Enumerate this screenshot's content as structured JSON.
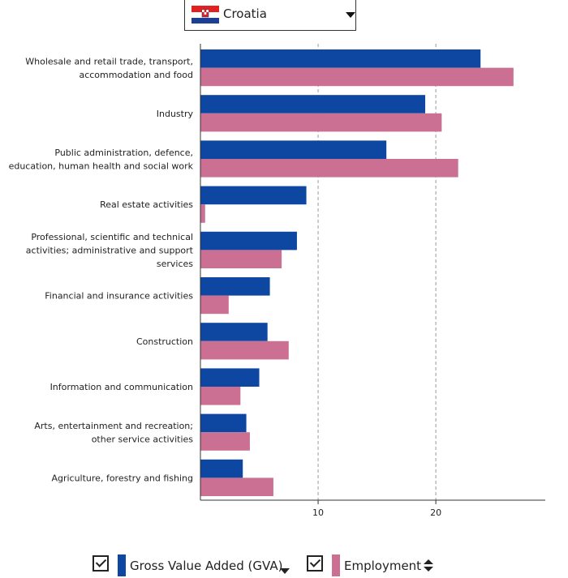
{
  "selector": {
    "country": "Croatia",
    "flag_icon": "croatia-flag-icon",
    "dropdown_icon": "caret-down-icon"
  },
  "chart_data": {
    "type": "bar",
    "orientation": "horizontal",
    "title": "",
    "xlabel": "",
    "ylabel": "",
    "categories": [
      "Wholesale and retail trade, transport, accommodation and food",
      "Industry",
      "Public administration, defence, education, human health and social work",
      "Real estate activities",
      "Professional, scientific and technical activities; administrative and support services",
      "Financial and insurance activities",
      "Construction",
      "Information and communication",
      "Arts, entertainment and recreation; other service activities",
      "Agriculture, forestry and fishing"
    ],
    "category_lines": [
      [
        "Wholesale and retail trade, transport,",
        "accommodation and food"
      ],
      [
        "Industry"
      ],
      [
        "Public administration, defence,",
        "education, human health and social work"
      ],
      [
        "Real estate activities"
      ],
      [
        "Professional, scientific and technical",
        "activities; administrative and support",
        "services"
      ],
      [
        "Financial and insurance activities"
      ],
      [
        "Construction"
      ],
      [
        "Information and communication"
      ],
      [
        "Arts, entertainment and recreation;",
        "other service activities"
      ],
      [
        "Agriculture, forestry and fishing"
      ]
    ],
    "series": [
      {
        "name": "Gross Value Added (GVA)",
        "color": "#0d47a1",
        "values": [
          23.8,
          19.1,
          15.8,
          9.0,
          8.2,
          5.9,
          5.7,
          5.0,
          3.9,
          3.6
        ]
      },
      {
        "name": "Employment",
        "color": "#cc7093",
        "values": [
          26.6,
          20.5,
          21.9,
          0.4,
          6.9,
          2.4,
          7.5,
          3.4,
          4.2,
          6.2
        ]
      }
    ],
    "xlim": [
      0,
      29.3
    ],
    "xticks": [
      10,
      20
    ],
    "xtick_labels": [
      "10",
      "20"
    ],
    "grid": "vertical-dashed",
    "legend_position": "bottom"
  },
  "legend": {
    "items": [
      {
        "label": "Gross Value Added (GVA)",
        "color": "#0d47a1",
        "sort_icon": "sort-desc-icon"
      },
      {
        "label": "Employment",
        "color": "#cc7093",
        "sort_icon": "sort-toggle-icon"
      }
    ]
  }
}
